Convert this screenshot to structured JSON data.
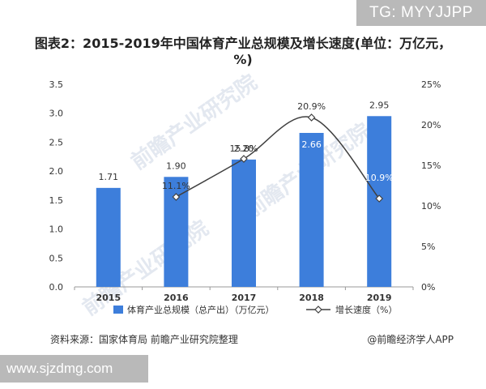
{
  "watermark_top": "TG: MYYJJPP",
  "watermark_bottom": "www.sjzdmg.com",
  "chart_data": {
    "type": "bar",
    "title": "图表2：2015-2019年中国体育产业总规模及增长速度(单位：万亿元，%)",
    "categories": [
      "2015",
      "2016",
      "2017",
      "2018",
      "2019"
    ],
    "series": [
      {
        "name": "体育产业总规模（总产出）（万亿元）",
        "type": "bar",
        "axis": "left",
        "values": [
          1.71,
          1.9,
          2.2,
          2.66,
          2.95
        ],
        "labels": [
          "1.71",
          "1.90",
          "2.20",
          "2.66",
          "2.95"
        ],
        "color": "#3d7edb"
      },
      {
        "name": "增长速度（%）",
        "type": "line",
        "axis": "right",
        "values": [
          null,
          11.1,
          15.8,
          20.9,
          10.9
        ],
        "labels": [
          "",
          "11.1%",
          "15.8%",
          "20.9%",
          "10.9%"
        ],
        "color": "#404040"
      }
    ],
    "y_left": {
      "lim": [
        0,
        3.5
      ],
      "ticks": [
        "0.0",
        "0.5",
        "1.0",
        "1.5",
        "2.0",
        "2.5",
        "3.0",
        "3.5"
      ]
    },
    "y_right": {
      "lim": [
        0,
        25
      ],
      "ticks": [
        "0%",
        "5%",
        "10%",
        "15%",
        "20%",
        "25%"
      ]
    },
    "grid": false,
    "legend_position": "bottom"
  },
  "footer": {
    "source": "资料来源：国家体育局 前瞻产业研究院整理",
    "credit": "@前瞻经济学人APP"
  },
  "faint_watermark": "前瞻产业研究院"
}
